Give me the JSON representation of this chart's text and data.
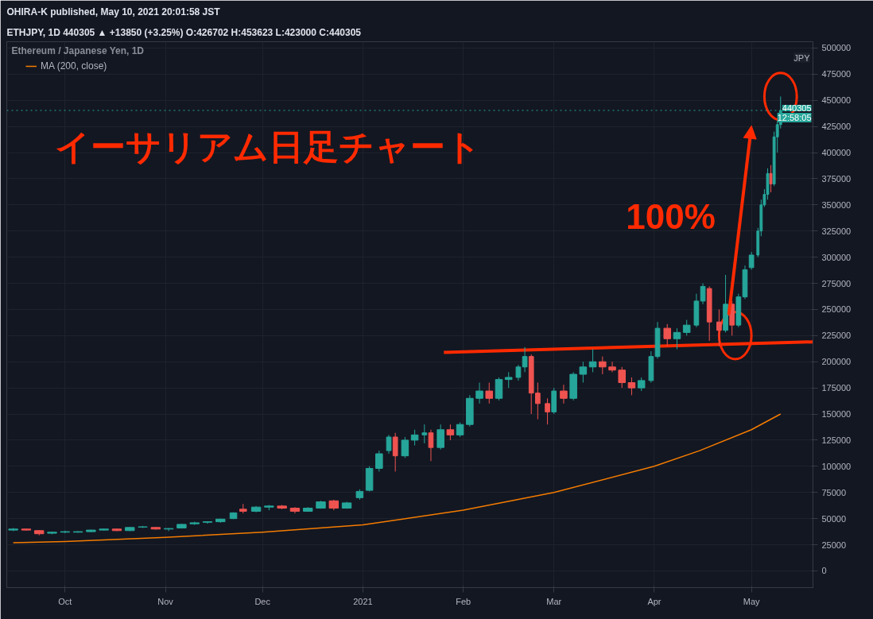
{
  "chart_data": {
    "type": "candlestick",
    "title": "イーサリアム日足チャート",
    "subtitle": "Ethereum / Japanese Yen, 1D",
    "annotations": [
      "OHIRA-K published, May 10, 2021 20:01:58 JST",
      "ETHJPY, 1D  440305 ▲ +13850 (+3.25%) O:426702 H:453623 L:423000 C:440305",
      "JPY",
      "440305",
      "12:58:05",
      "100%"
    ],
    "x": [
      "2020-09-15",
      "2020-09-19",
      "2020-09-23",
      "2020-09-27",
      "2020-10-01",
      "2020-10-05",
      "2020-10-09",
      "2020-10-13",
      "2020-10-17",
      "2020-10-21",
      "2020-10-25",
      "2020-10-29",
      "2020-11-02",
      "2020-11-06",
      "2020-11-10",
      "2020-11-14",
      "2020-11-18",
      "2020-11-22",
      "2020-11-25",
      "2020-11-29",
      "2020-12-03",
      "2020-12-07",
      "2020-12-11",
      "2020-12-15",
      "2020-12-19",
      "2020-12-23",
      "2020-12-27",
      "2020-12-31",
      "2021-01-03",
      "2021-01-06",
      "2021-01-09",
      "2021-01-11",
      "2021-01-14",
      "2021-01-17",
      "2021-01-20",
      "2021-01-22",
      "2021-01-25",
      "2021-01-28",
      "2021-01-31",
      "2021-02-03",
      "2021-02-06",
      "2021-02-09",
      "2021-02-12",
      "2021-02-15",
      "2021-02-18",
      "2021-02-20",
      "2021-02-22",
      "2021-02-24",
      "2021-02-27",
      "2021-03-01",
      "2021-03-04",
      "2021-03-07",
      "2021-03-10",
      "2021-03-13",
      "2021-03-16",
      "2021-03-19",
      "2021-03-22",
      "2021-03-25",
      "2021-03-28",
      "2021-03-31",
      "2021-04-02",
      "2021-04-05",
      "2021-04-08",
      "2021-04-11",
      "2021-04-14",
      "2021-04-16",
      "2021-04-18",
      "2021-04-21",
      "2021-04-23",
      "2021-04-25",
      "2021-04-27",
      "2021-04-29",
      "2021-05-01",
      "2021-05-03",
      "2021-05-04",
      "2021-05-05",
      "2021-05-06",
      "2021-05-07",
      "2021-05-08",
      "2021-05-09",
      "2021-05-10"
    ],
    "ohlc": [
      [
        39000,
        41000,
        38000,
        40000
      ],
      [
        40000,
        40500,
        38500,
        39000
      ],
      [
        38500,
        39000,
        34000,
        35500
      ],
      [
        36000,
        37500,
        35000,
        37000
      ],
      [
        37000,
        38500,
        36000,
        37500
      ],
      [
        37000,
        38000,
        36500,
        37500
      ],
      [
        37500,
        39500,
        37000,
        39000
      ],
      [
        39000,
        40500,
        38500,
        40000
      ],
      [
        40000,
        40500,
        38000,
        38500
      ],
      [
        38500,
        42000,
        38000,
        41500
      ],
      [
        42000,
        43000,
        41000,
        42000
      ],
      [
        41500,
        42000,
        39500,
        40000
      ],
      [
        40000,
        41000,
        38000,
        40500
      ],
      [
        41000,
        45000,
        40500,
        44500
      ],
      [
        45000,
        47000,
        44000,
        46000
      ],
      [
        46500,
        47500,
        45000,
        47000
      ],
      [
        47000,
        50000,
        46000,
        49500
      ],
      [
        50000,
        56000,
        49500,
        55500
      ],
      [
        59000,
        64000,
        55000,
        57000
      ],
      [
        57000,
        62000,
        56000,
        61000
      ],
      [
        61000,
        63000,
        58000,
        62000
      ],
      [
        62000,
        63000,
        59000,
        60000
      ],
      [
        60000,
        61000,
        55000,
        57000
      ],
      [
        57000,
        61000,
        56500,
        60000
      ],
      [
        60000,
        67000,
        59500,
        66000
      ],
      [
        67000,
        68000,
        58000,
        60000
      ],
      [
        60000,
        66000,
        59500,
        65000
      ],
      [
        70000,
        78000,
        68000,
        76000
      ],
      [
        77000,
        100000,
        76000,
        98000
      ],
      [
        98000,
        115000,
        95000,
        112000
      ],
      [
        115000,
        130000,
        112000,
        128000
      ],
      [
        128000,
        132000,
        95000,
        110000
      ],
      [
        110000,
        128000,
        108000,
        125000
      ],
      [
        125000,
        135000,
        120000,
        130000
      ],
      [
        130000,
        140000,
        122000,
        132000
      ],
      [
        132000,
        135000,
        105000,
        118000
      ],
      [
        118000,
        140000,
        116000,
        135000
      ],
      [
        135000,
        140000,
        125000,
        130000
      ],
      [
        130000,
        142000,
        128000,
        140000
      ],
      [
        140000,
        168000,
        138000,
        165000
      ],
      [
        165000,
        180000,
        160000,
        172000
      ],
      [
        172000,
        180000,
        160000,
        165000
      ],
      [
        165000,
        185000,
        163000,
        183000
      ],
      [
        183000,
        190000,
        175000,
        185000
      ],
      [
        185000,
        197000,
        182000,
        195000
      ],
      [
        195000,
        214000,
        190000,
        205000
      ],
      [
        205000,
        207000,
        150000,
        170000
      ],
      [
        170000,
        180000,
        145000,
        160000
      ],
      [
        160000,
        165000,
        140000,
        152000
      ],
      [
        152000,
        175000,
        150000,
        172000
      ],
      [
        172000,
        178000,
        160000,
        165000
      ],
      [
        165000,
        190000,
        163000,
        188000
      ],
      [
        188000,
        200000,
        180000,
        195000
      ],
      [
        195000,
        212000,
        190000,
        200000
      ],
      [
        200000,
        205000,
        188000,
        195000
      ],
      [
        195000,
        200000,
        190000,
        192000
      ],
      [
        192000,
        195000,
        175000,
        180000
      ],
      [
        180000,
        185000,
        168000,
        175000
      ],
      [
        175000,
        185000,
        172000,
        182000
      ],
      [
        182000,
        210000,
        180000,
        205000
      ],
      [
        205000,
        238000,
        203000,
        232000
      ],
      [
        232000,
        236000,
        215000,
        222000
      ],
      [
        222000,
        232000,
        212000,
        228000
      ],
      [
        228000,
        240000,
        225000,
        235000
      ],
      [
        235000,
        265000,
        233000,
        258000
      ],
      [
        258000,
        275000,
        255000,
        272000
      ],
      [
        270000,
        272000,
        220000,
        238000
      ],
      [
        238000,
        250000,
        215000,
        230000
      ],
      [
        230000,
        283000,
        228000,
        255000
      ],
      [
        255000,
        258000,
        225000,
        235000
      ],
      [
        235000,
        265000,
        233000,
        262000
      ],
      [
        262000,
        292000,
        260000,
        288000
      ],
      [
        290000,
        305000,
        288000,
        302000
      ],
      [
        302000,
        328000,
        300000,
        325000
      ],
      [
        325000,
        355000,
        320000,
        350000
      ],
      [
        350000,
        365000,
        348000,
        360000
      ],
      [
        360000,
        385000,
        355000,
        380000
      ],
      [
        380000,
        388000,
        362000,
        370000
      ],
      [
        370000,
        420000,
        368000,
        415000
      ],
      [
        415000,
        430000,
        400000,
        426702
      ],
      [
        426702,
        453623,
        423000,
        440305
      ]
    ],
    "series": [
      {
        "type": "line",
        "name": "MA (200, close)",
        "color": "#f57c00",
        "x": [
          "2020-09-15",
          "2020-10-01",
          "2020-11-01",
          "2020-12-01",
          "2021-01-01",
          "2021-02-01",
          "2021-03-01",
          "2021-04-01",
          "2021-04-15",
          "2021-05-01",
          "2021-05-10"
        ],
        "values": [
          27000,
          28000,
          32000,
          37000,
          44000,
          58000,
          75000,
          100000,
          115000,
          135000,
          150000
        ]
      },
      {
        "type": "line",
        "color": "#ff2a00",
        "x": [
          "2021-01-26",
          "2021-05-20"
        ],
        "values": [
          209000,
          219000
        ]
      }
    ],
    "ref_lines": [
      {
        "axis": "y",
        "value": 440305,
        "color": "#26a69a",
        "line_style": "dotted"
      }
    ],
    "xlim": [
      "2020-09-13",
      "2021-05-20"
    ],
    "xticks": [
      {
        "value": "2020-10-01",
        "label": "Oct"
      },
      {
        "value": "2020-11-01",
        "label": "Nov"
      },
      {
        "value": "2020-12-01",
        "label": "Dec"
      },
      {
        "value": "2021-01-01",
        "label": "2021"
      },
      {
        "value": "2021-02-01",
        "label": "Feb"
      },
      {
        "value": "2021-03-01",
        "label": "Mar"
      },
      {
        "value": "2021-04-01",
        "label": "Apr"
      },
      {
        "value": "2021-05-01",
        "label": "May"
      }
    ],
    "ylim": [
      -16000,
      506000
    ],
    "yticks": [
      0,
      25000,
      50000,
      75000,
      100000,
      125000,
      150000,
      175000,
      200000,
      225000,
      250000,
      275000,
      300000,
      325000,
      350000,
      375000,
      400000,
      425000,
      450000,
      475000,
      500000
    ],
    "grid": true,
    "legend": "top left"
  }
}
